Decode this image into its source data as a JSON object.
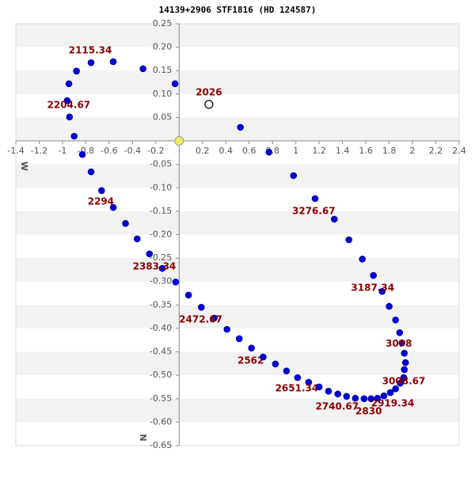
{
  "chart_data": {
    "type": "scatter",
    "title": "14139+2906 STF1816 (HD 124587)",
    "xlabel": "W",
    "ylabel": "N",
    "xlim": [
      -1.4,
      2.4
    ],
    "ylim": [
      0.25,
      -0.65
    ],
    "xticks": [
      -1.4,
      -1.2,
      -1,
      -0.8,
      -0.6,
      -0.4,
      -0.2,
      0.2,
      0.4,
      0.6,
      0.8,
      1,
      1.2,
      1.4,
      1.6,
      1.8,
      2,
      2.2,
      2.4
    ],
    "yticks": [
      0.25,
      {
        "value": 0.2,
        "label": "0.20"
      },
      0.15,
      {
        "value": 0.1,
        "label": "0.10"
      },
      0.05,
      -0.05,
      {
        "value": -0.1,
        "label": "-0.10"
      },
      -0.15,
      {
        "value": -0.2,
        "label": "-0.20"
      },
      -0.25,
      {
        "value": -0.3,
        "label": "-0.30"
      },
      -0.35,
      {
        "value": -0.4,
        "label": "-0.40"
      },
      -0.45,
      {
        "value": -0.5,
        "label": "-0.50"
      },
      -0.55,
      {
        "value": -0.6,
        "label": "-0.60"
      },
      -0.65
    ],
    "series": [
      {
        "color": "#0000dd",
        "marker": "filled",
        "x": [
          -0.035,
          -0.31,
          -0.565,
          -0.755,
          -0.88,
          -0.945,
          -0.96,
          -0.94,
          -0.9,
          -0.83,
          -0.755,
          -0.665,
          -0.565,
          -0.46,
          -0.36,
          -0.255,
          -0.145,
          -0.03,
          0.08,
          0.19,
          0.3,
          0.41,
          0.515,
          0.62,
          0.72,
          0.825,
          0.92,
          1.015,
          1.11,
          1.2,
          1.28,
          1.36,
          1.435,
          1.51,
          1.585,
          1.645,
          1.7,
          1.755,
          1.81,
          1.855,
          1.895,
          1.925,
          1.93,
          1.94,
          1.93,
          1.91,
          1.89,
          1.855,
          1.8,
          1.74,
          1.665,
          1.57,
          1.455,
          1.33,
          1.165,
          0.98,
          0.77,
          0.525
        ],
        "y": [
          0.122,
          0.154,
          0.169,
          0.167,
          0.149,
          0.122,
          0.086,
          0.051,
          0.01,
          -0.029,
          -0.066,
          -0.106,
          -0.142,
          -0.176,
          -0.209,
          -0.241,
          -0.272,
          -0.301,
          -0.329,
          -0.355,
          -0.378,
          -0.402,
          -0.422,
          -0.442,
          -0.461,
          -0.476,
          -0.491,
          -0.505,
          -0.515,
          -0.525,
          -0.534,
          -0.54,
          -0.545,
          -0.549,
          -0.55,
          -0.55,
          -0.549,
          -0.544,
          -0.537,
          -0.529,
          -0.517,
          -0.505,
          -0.488,
          -0.473,
          -0.453,
          -0.431,
          -0.409,
          -0.382,
          -0.353,
          -0.321,
          -0.287,
          -0.252,
          -0.211,
          -0.167,
          -0.123,
          -0.074,
          -0.024,
          0.029
        ],
        "point_labels": [
          null,
          null,
          null,
          "2115.34",
          null,
          null,
          "2204.67",
          null,
          null,
          null,
          null,
          "2294",
          null,
          null,
          null,
          null,
          "2383.34",
          null,
          null,
          null,
          "2472.67",
          null,
          null,
          "2562",
          null,
          null,
          null,
          null,
          "2651.34",
          null,
          null,
          null,
          "2740.67",
          null,
          null,
          "2830",
          null,
          null,
          "2919.34",
          null,
          null,
          "3008.67",
          null,
          null,
          null,
          "3098",
          null,
          null,
          null,
          "3187.34",
          null,
          null,
          null,
          "3276.67",
          null,
          null,
          null,
          null
        ]
      },
      {
        "color": "#ffffff",
        "marker": "open",
        "x": [
          0.255
        ],
        "y": [
          0.078
        ],
        "point_labels": [
          "2026"
        ]
      },
      {
        "color": "#eeee66",
        "marker": "star",
        "x": [
          0
        ],
        "y": [
          0
        ]
      }
    ]
  }
}
